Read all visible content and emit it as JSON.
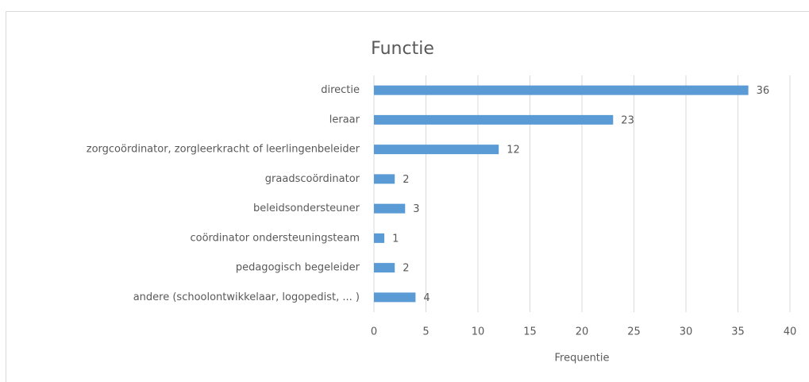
{
  "chart_data": {
    "type": "bar",
    "orientation": "horizontal",
    "title": "Functie",
    "categories": [
      "directie",
      "leraar",
      "zorgcoördinator, zorgleerkracht of leerlingenbeleider",
      "graadscoördinator",
      "beleidsondersteuner",
      "coördinator ondersteuningsteam",
      "pedagogisch begeleider",
      "andere (schoolontwikkelaar, logopedist, ... )"
    ],
    "values": [
      36,
      23,
      12,
      2,
      3,
      1,
      2,
      4
    ],
    "color": "#5b9bd5",
    "xlabel": "Frequentie",
    "xlim": [
      0,
      40
    ],
    "xticks": [
      0,
      5,
      10,
      15,
      20,
      25,
      30,
      35,
      40
    ],
    "grid": true
  }
}
